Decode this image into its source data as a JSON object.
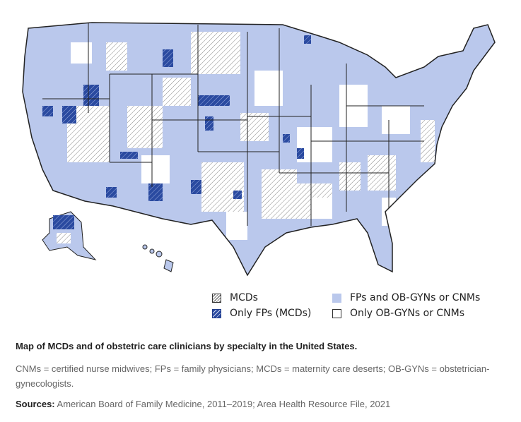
{
  "legend": [
    {
      "label": "MCDs",
      "swatch": "hatch"
    },
    {
      "label": "FPs and OB-GYNs or CNMs",
      "swatch": "light"
    },
    {
      "label": "Only FPs (MCDs)",
      "swatch": "dark"
    },
    {
      "label": "Only OB-GYNs or CNMs",
      "swatch": "white"
    }
  ],
  "colors": {
    "fp_obgyn": "#bac8ec",
    "only_fp": "#2a4aa0",
    "mcd_hatch": "#555555",
    "border": "#222222"
  },
  "caption": "Map of MCDs and of obstetric care clinicians by specialty in the United States.",
  "notes": "CNMs = certified nurse midwives; FPs = family physicians; MCDs = maternity care deserts; OB-GYNs = obstetrician-gynecologists.",
  "sources_label": "Sources:",
  "sources": "American Board of Family Medicine, 2011–2019; Area Health Resource File, 2021"
}
